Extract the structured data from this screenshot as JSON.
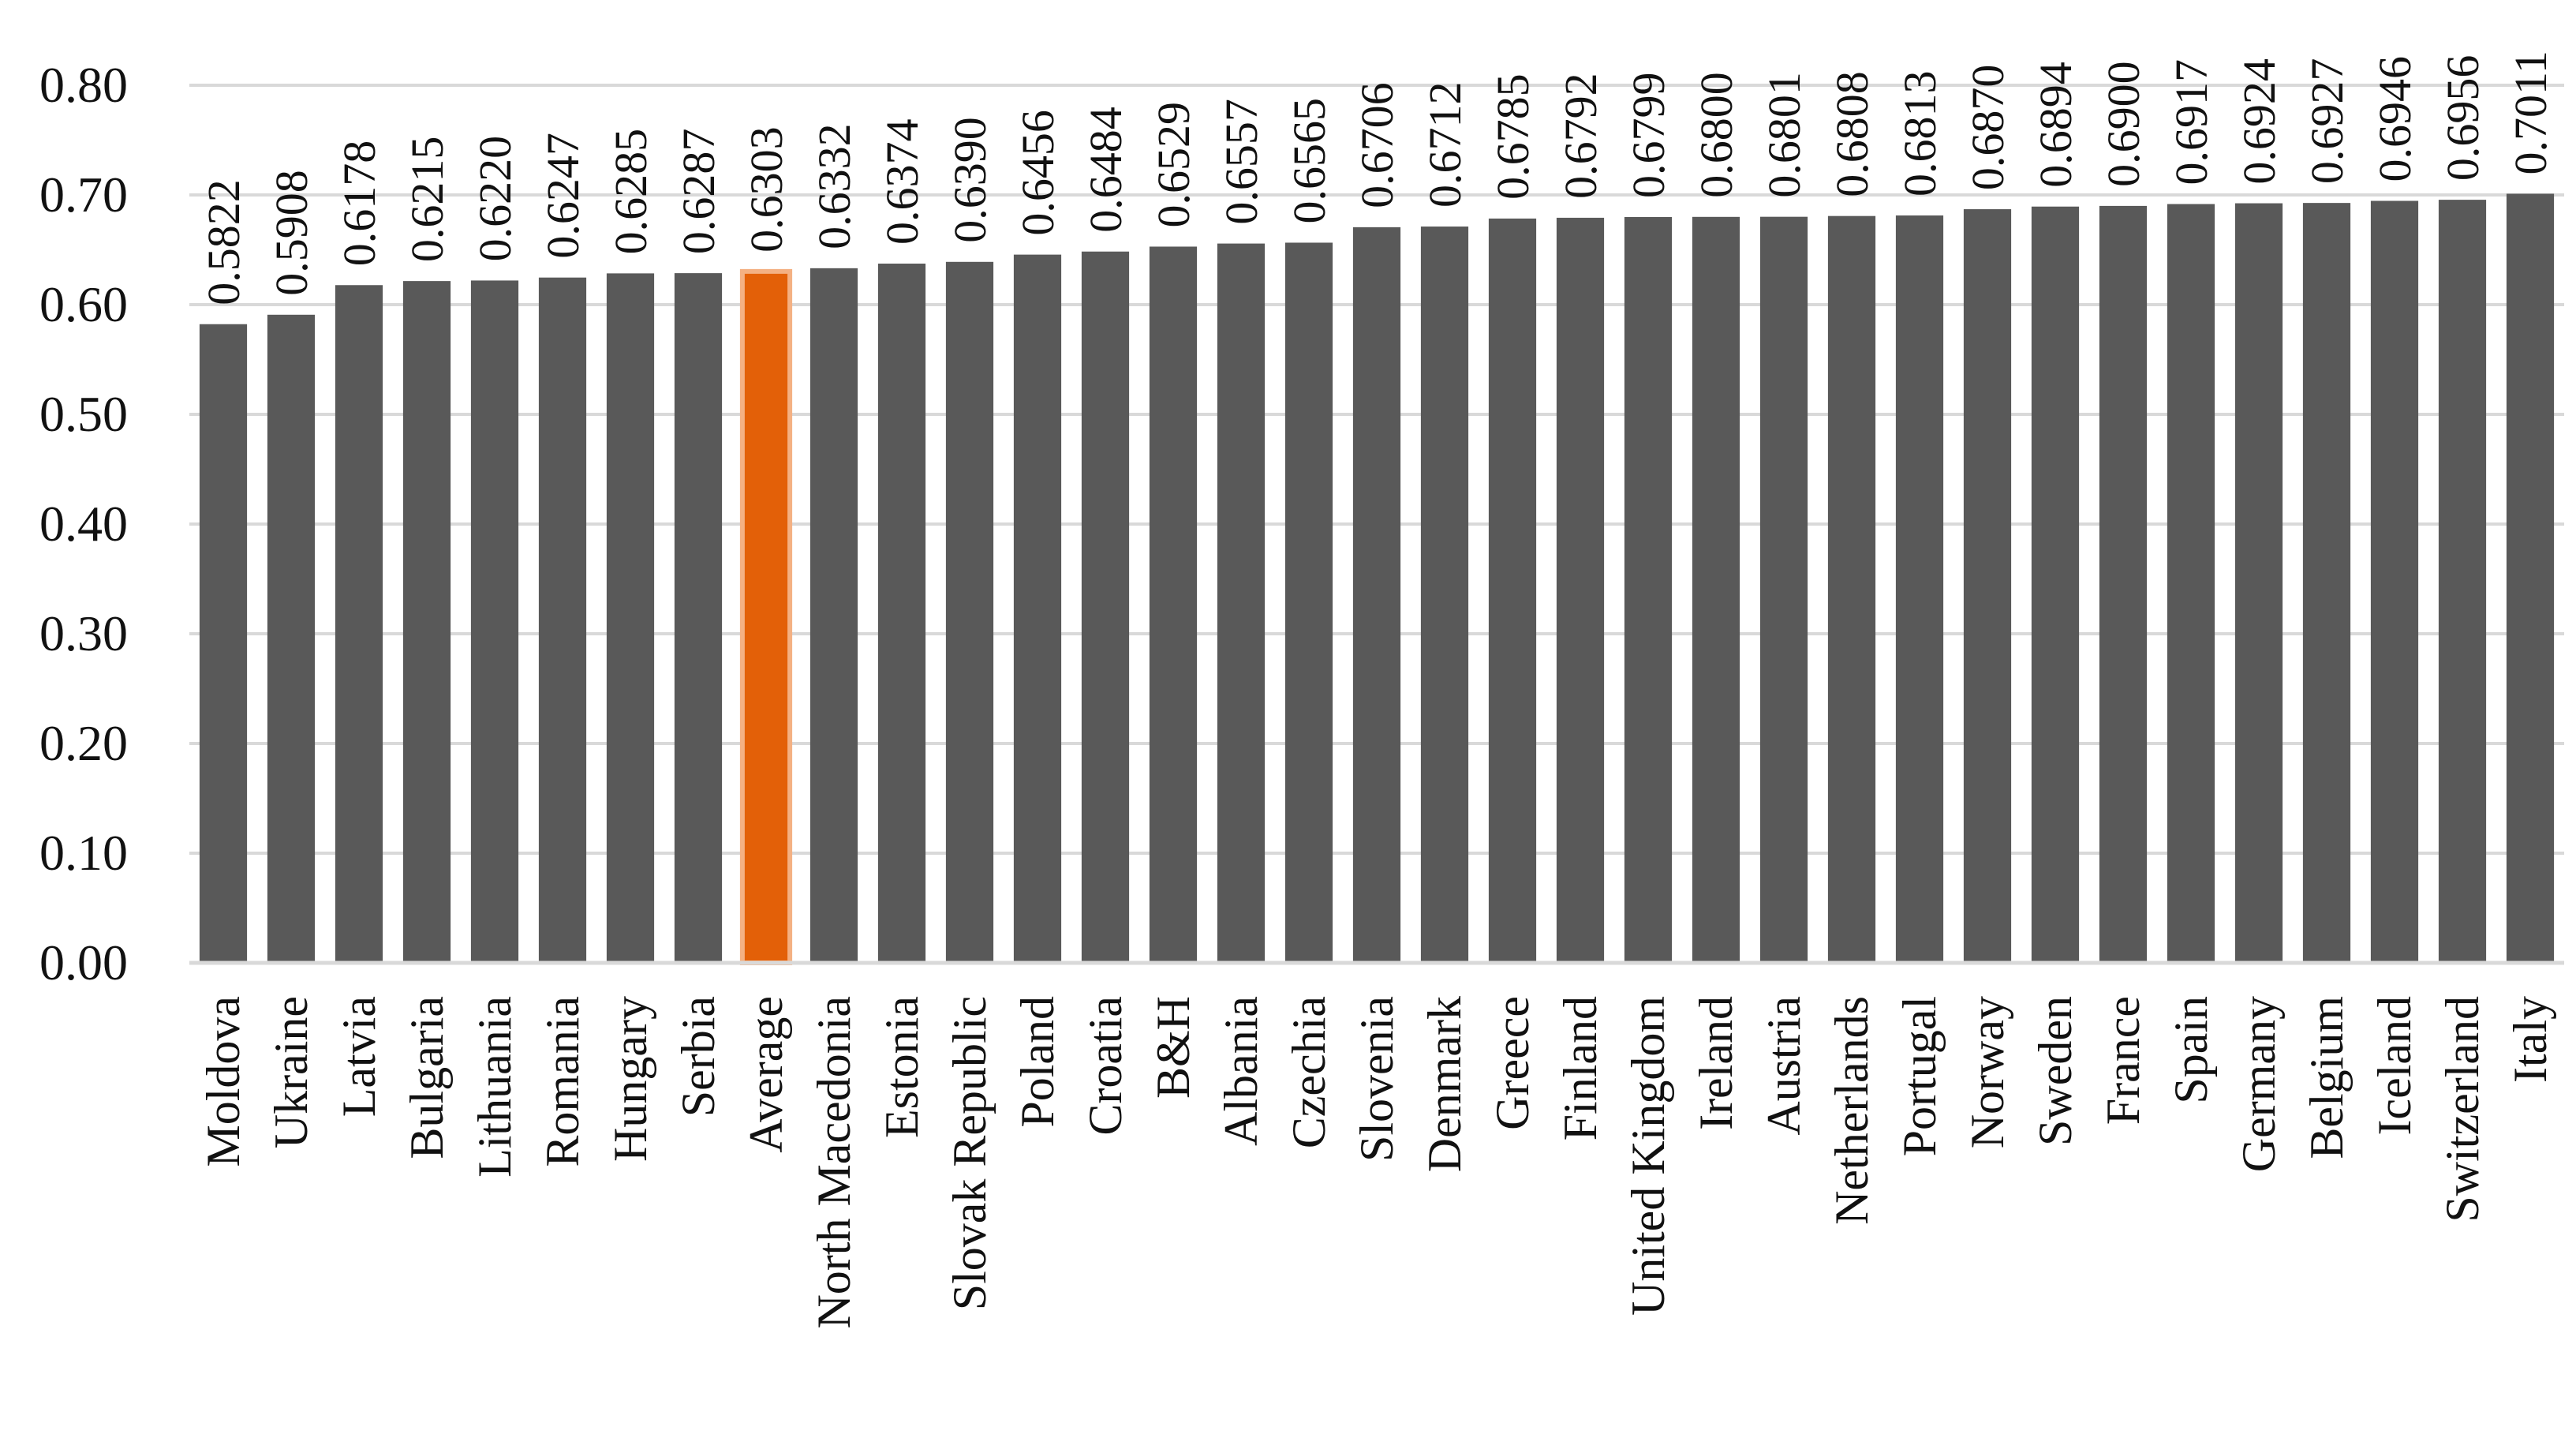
{
  "chart_data": {
    "type": "bar",
    "title": "",
    "xlabel": "",
    "ylabel": "",
    "ylim": [
      0,
      0.8
    ],
    "yticks": [
      "0.00",
      "0.10",
      "0.20",
      "0.30",
      "0.40",
      "0.50",
      "0.60",
      "0.70",
      "0.80"
    ],
    "grid": true,
    "legend": "none",
    "categories": [
      "Moldova",
      "Ukraine",
      "Latvia",
      "Bulgaria",
      "Lithuania",
      "Romania",
      "Hungary",
      "Serbia",
      "Average",
      "North Macedonia",
      "Estonia",
      "Slovak Republic",
      "Poland",
      "Croatia",
      "B&H",
      "Albania",
      "Czechia",
      "Slovenia",
      "Denmark",
      "Greece",
      "Finland",
      "United Kingdom",
      "Ireland",
      "Austria",
      "Netherlands",
      "Portugal",
      "Norway",
      "Sweden",
      "France",
      "Spain",
      "Germany",
      "Belgium",
      "Iceland",
      "Switzerland",
      "Italy"
    ],
    "values": [
      0.5822,
      0.5908,
      0.6178,
      0.6215,
      0.622,
      0.6247,
      0.6285,
      0.6287,
      0.6303,
      0.6332,
      0.6374,
      0.639,
      0.6456,
      0.6484,
      0.6529,
      0.6557,
      0.6565,
      0.6706,
      0.6712,
      0.6785,
      0.6792,
      0.6799,
      0.68,
      0.6801,
      0.6808,
      0.6813,
      0.687,
      0.6894,
      0.69,
      0.6917,
      0.6924,
      0.6927,
      0.6946,
      0.6956,
      0.7011
    ],
    "value_labels": [
      "0.5822",
      "0.5908",
      "0.6178",
      "0.6215",
      "0.6220",
      "0.6247",
      "0.6285",
      "0.6287",
      "0.6303",
      "0.6332",
      "0.6374",
      "0.6390",
      "0.6456",
      "0.6484",
      "0.6529",
      "0.6557",
      "0.6565",
      "0.6706",
      "0.6712",
      "0.6785",
      "0.6792",
      "0.6799",
      "0.6800",
      "0.6801",
      "0.6808",
      "0.6813",
      "0.6870",
      "0.6894",
      "0.6900",
      "0.6917",
      "0.6924",
      "0.6927",
      "0.6946",
      "0.6956",
      "0.7011"
    ],
    "highlight_category": "Average",
    "colors": {
      "bar": "#595959",
      "highlight": "#E36008",
      "highlight_border": "#F4B183"
    }
  }
}
